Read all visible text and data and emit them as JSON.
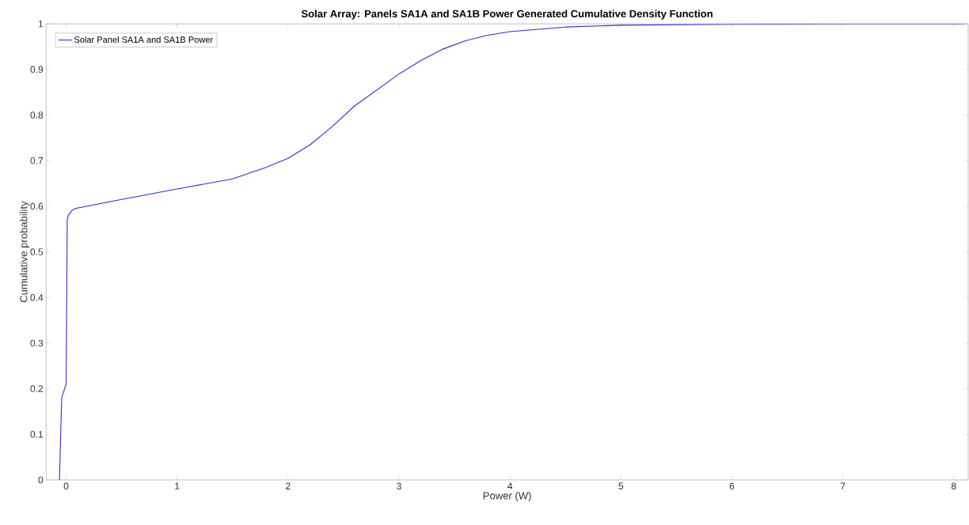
{
  "chart_data": {
    "type": "line",
    "title": "Solar Array: Panels SA1A and SA1B Power Generated Cumulative Density Function",
    "xlabel": "Power (W)",
    "ylabel": "Cumulative probability",
    "xlim": [
      -0.18,
      8.13
    ],
    "ylim": [
      0,
      1
    ],
    "xticks": [
      0,
      1,
      2,
      3,
      4,
      5,
      6,
      7,
      8
    ],
    "yticks": [
      0,
      0.1,
      0.2,
      0.3,
      0.4,
      0.5,
      0.6,
      0.7,
      0.8,
      0.9,
      1
    ],
    "legend": "top left",
    "grid": false,
    "series": [
      {
        "name": "Solar Panel SA1A and SA1B Power",
        "color": "#2f2fd6",
        "x": [
          -0.06,
          -0.04,
          0,
          0.01,
          0.02,
          0.05,
          0.08,
          0.5,
          1,
          1.5,
          1.8,
          2,
          2.2,
          2.4,
          2.6,
          2.8,
          3,
          3.2,
          3.4,
          3.6,
          3.8,
          4,
          4.5,
          5,
          6,
          7,
          8.1
        ],
        "values": [
          0,
          0.18,
          0.21,
          0.57,
          0.58,
          0.59,
          0.595,
          0.615,
          0.638,
          0.66,
          0.685,
          0.705,
          0.735,
          0.775,
          0.82,
          0.855,
          0.89,
          0.92,
          0.945,
          0.963,
          0.975,
          0.983,
          0.993,
          0.997,
          0.999,
          1,
          1
        ]
      }
    ]
  }
}
